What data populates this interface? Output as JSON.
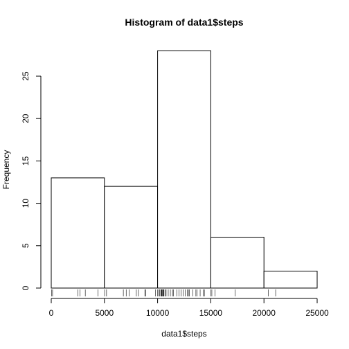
{
  "chart_data": {
    "type": "bar",
    "title": "Histogram of data1$steps",
    "xlabel": "data1$steps",
    "ylabel": "Frequency",
    "bins": [
      [
        0,
        5000
      ],
      [
        5000,
        10000
      ],
      [
        10000,
        15000
      ],
      [
        15000,
        20000
      ],
      [
        20000,
        25000
      ]
    ],
    "values": [
      13,
      12,
      28,
      6,
      2
    ],
    "xlim": [
      0,
      25000
    ],
    "ylim": [
      0,
      28
    ],
    "x_ticks": [
      0,
      5000,
      10000,
      15000,
      20000,
      25000
    ],
    "x_tick_labels": [
      "0",
      "5000",
      "10000",
      "15000",
      "20000",
      "25000"
    ],
    "y_ticks": [
      0,
      5,
      10,
      15,
      20,
      25
    ],
    "y_tick_labels": [
      "0",
      "5",
      "10",
      "15",
      "20",
      "25"
    ],
    "rug": [
      41,
      126,
      2492,
      2700,
      3200,
      4400,
      5018,
      5200,
      6778,
      7047,
      7336,
      8000,
      8200,
      8800,
      8900,
      9800,
      10000,
      10100,
      10200,
      10300,
      10350,
      10400,
      10440,
      10500,
      10571,
      10600,
      10700,
      10800,
      11000,
      11200,
      11400,
      11500,
      11800,
      12000,
      12200,
      12400,
      12600,
      12800,
      12900,
      13000,
      13300,
      13600,
      13700,
      14000,
      14300,
      14400,
      15000,
      15100,
      15400,
      17300,
      20400,
      21100
    ],
    "grid": false,
    "legend": "none"
  }
}
